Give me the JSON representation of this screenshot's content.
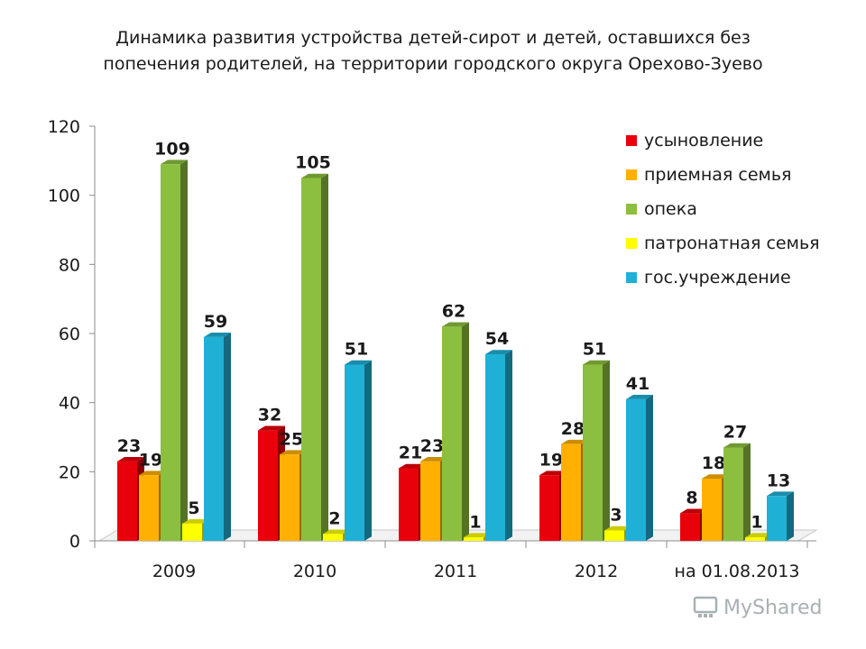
{
  "chart_data": {
    "type": "bar",
    "title_lines": [
      "Динамика развития устройства детей-сирот и детей, оставшихся без",
      "попечения родителей, на территории городского округа Орехово-Зуево"
    ],
    "categories": [
      "2009",
      "2010",
      "2011",
      "2012",
      "на 01.08.2013"
    ],
    "series": [
      {
        "name": "усыновление",
        "color": "#e8000b",
        "values": [
          23,
          32,
          21,
          19,
          8
        ]
      },
      {
        "name": "приемная семья",
        "color": "#ffb000",
        "values": [
          19,
          25,
          23,
          28,
          18
        ]
      },
      {
        "name": "опека",
        "color": "#8cbf3f",
        "values": [
          109,
          105,
          62,
          51,
          27
        ]
      },
      {
        "name": "патронатная семья",
        "color": "#ffff00",
        "values": [
          5,
          2,
          1,
          3,
          1
        ]
      },
      {
        "name": "гос.учреждение",
        "color": "#1fb0d6",
        "values": [
          59,
          51,
          54,
          41,
          13
        ]
      }
    ],
    "ylim": [
      0,
      120
    ],
    "yticks": [
      "0",
      "20",
      "40",
      "60",
      "80",
      "100",
      "120"
    ],
    "legend_position": "top-right",
    "grid": false
  },
  "watermark": {
    "text": "MyShared",
    "icon": "myshared-logo-icon"
  }
}
